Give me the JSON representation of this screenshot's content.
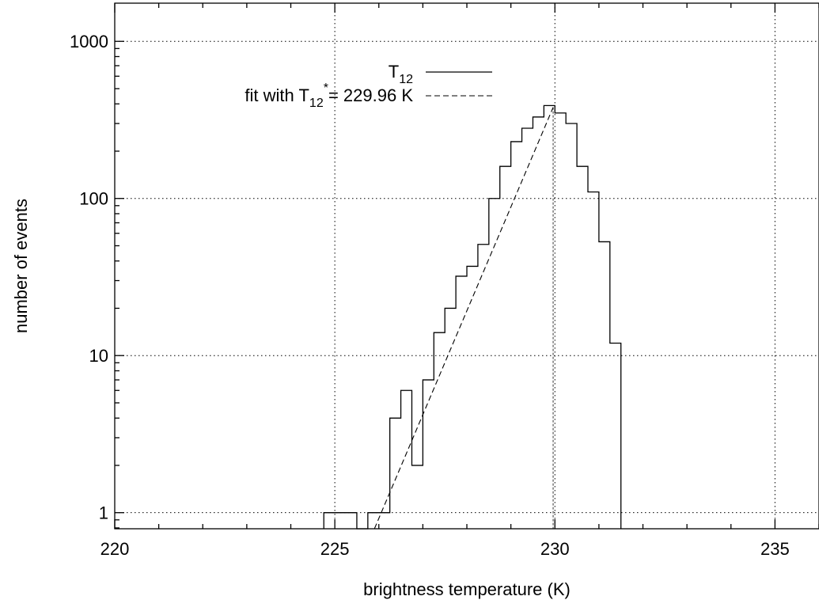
{
  "chart_data": {
    "type": "line",
    "title": "",
    "xlabel": "brightness temperature (K)",
    "ylabel": "number of events",
    "xlim": [
      220,
      236
    ],
    "ylim": [
      0.79,
      1750
    ],
    "yscale": "log",
    "x_ticks": [
      220,
      225,
      230,
      235
    ],
    "y_ticks": [
      1,
      10,
      100,
      1000
    ],
    "grid": true,
    "legend_position": "top-center",
    "histogram": {
      "name": "T12",
      "bin_width": 0.25,
      "bins": [
        {
          "x0": 224.75,
          "count": 1
        },
        {
          "x0": 225.0,
          "count": 1
        },
        {
          "x0": 225.25,
          "count": 1
        },
        {
          "x0": 225.5,
          "count": 0
        },
        {
          "x0": 225.75,
          "count": 1
        },
        {
          "x0": 226.0,
          "count": 1
        },
        {
          "x0": 226.25,
          "count": 4
        },
        {
          "x0": 226.5,
          "count": 6
        },
        {
          "x0": 226.75,
          "count": 2
        },
        {
          "x0": 227.0,
          "count": 7
        },
        {
          "x0": 227.25,
          "count": 14
        },
        {
          "x0": 227.5,
          "count": 20
        },
        {
          "x0": 227.75,
          "count": 32
        },
        {
          "x0": 228.0,
          "count": 37
        },
        {
          "x0": 228.25,
          "count": 51
        },
        {
          "x0": 228.5,
          "count": 100
        },
        {
          "x0": 228.75,
          "count": 160
        },
        {
          "x0": 229.0,
          "count": 230
        },
        {
          "x0": 229.25,
          "count": 280
        },
        {
          "x0": 229.5,
          "count": 330
        },
        {
          "x0": 229.75,
          "count": 390
        },
        {
          "x0": 230.0,
          "count": 350
        },
        {
          "x0": 230.25,
          "count": 300
        },
        {
          "x0": 230.5,
          "count": 160
        },
        {
          "x0": 230.75,
          "count": 110
        },
        {
          "x0": 231.0,
          "count": 53
        },
        {
          "x0": 231.25,
          "count": 12
        }
      ]
    },
    "fit": {
      "name": "fit with T12* = 229.96 K",
      "points": [
        {
          "x": 225.9,
          "y": 0.79
        },
        {
          "x": 229.96,
          "y": 380
        }
      ]
    },
    "reference_x": 229.96,
    "legend": [
      {
        "main": "T",
        "sub": "12",
        "after": "",
        "style": "solid"
      },
      {
        "main": "fit with T",
        "sub": "12",
        "sup": "*",
        "after": "= 229.96 K",
        "style": "dashed"
      }
    ]
  }
}
